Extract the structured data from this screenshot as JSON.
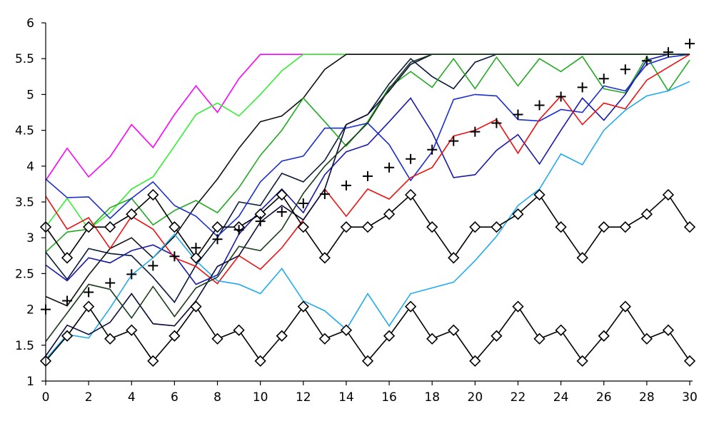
{
  "chart_data": {
    "type": "line",
    "title": "",
    "xlabel": "",
    "ylabel": "",
    "xlim": [
      0,
      30
    ],
    "ylim": [
      1,
      6
    ],
    "grid": false,
    "legend": "none",
    "x_ticks": [
      0,
      2,
      4,
      6,
      8,
      10,
      12,
      14,
      16,
      18,
      20,
      22,
      24,
      26,
      28,
      30
    ],
    "x_tick_labels": [
      "0",
      "2",
      "4",
      "6",
      "8",
      "10",
      "12",
      "14",
      "16",
      "18",
      "20",
      "22",
      "24",
      "26",
      "28",
      "30"
    ],
    "y_ticks": [
      1,
      1.5,
      2,
      2.5,
      3,
      3.5,
      4,
      4.5,
      5,
      5.5,
      6
    ],
    "y_tick_labels": [
      "1",
      "1.5",
      "2",
      "2.5",
      "3",
      "3.5",
      "4",
      "4.5",
      "5",
      "5.5",
      "6"
    ],
    "x": [
      0,
      1,
      2,
      3,
      4,
      5,
      6,
      7,
      8,
      9,
      10,
      11,
      12,
      13,
      14,
      15,
      16,
      17,
      18,
      19,
      20,
      21,
      22,
      23,
      24,
      25,
      26,
      27,
      28,
      29,
      30
    ],
    "series": [
      {
        "color": "#ff00ff",
        "marker": "none",
        "values": [
          3.8,
          4.25,
          3.85,
          4.13,
          4.58,
          4.26,
          4.72,
          5.12,
          4.75,
          5.22,
          5.56,
          5.56,
          5.56,
          5.56,
          5.56,
          5.56,
          5.56,
          5.56,
          5.56,
          5.56,
          5.56,
          5.56,
          5.56,
          5.56,
          5.56,
          5.56,
          5.56,
          5.56,
          5.56,
          5.56,
          5.56
        ]
      },
      {
        "color": "#33ee33",
        "marker": "none",
        "values": [
          3.15,
          3.55,
          3.12,
          3.35,
          3.68,
          3.85,
          4.28,
          4.72,
          4.88,
          4.7,
          5.0,
          5.33,
          5.56,
          5.56,
          5.56,
          5.56,
          5.56,
          5.56,
          5.56,
          5.56,
          5.56,
          5.56,
          5.56,
          5.56,
          5.56,
          5.56,
          5.56,
          5.56,
          5.56,
          5.56,
          5.56
        ]
      },
      {
        "color": "#0a1a3a",
        "marker": "none",
        "values": [
          2.8,
          2.42,
          2.85,
          2.78,
          2.75,
          2.45,
          2.1,
          2.62,
          3.0,
          3.5,
          3.45,
          3.9,
          3.78,
          4.08,
          4.58,
          4.72,
          5.15,
          5.5,
          5.25,
          5.08,
          5.45,
          5.56,
          5.56,
          5.56,
          5.56,
          5.56,
          5.56,
          5.56,
          5.56,
          5.56,
          5.56
        ]
      },
      {
        "color": "#111111",
        "marker": "none",
        "values": [
          2.18,
          2.05,
          2.48,
          2.85,
          3.0,
          2.72,
          3.02,
          3.45,
          3.82,
          4.25,
          4.62,
          4.7,
          4.95,
          5.35,
          5.56,
          5.56,
          5.56,
          5.56,
          5.56,
          5.56,
          5.56,
          5.56,
          5.56,
          5.56,
          5.56,
          5.56,
          5.56,
          5.56,
          5.56,
          5.56,
          5.56
        ]
      },
      {
        "color": "#22aa22",
        "marker": "none",
        "values": [
          2.8,
          3.08,
          3.12,
          3.42,
          3.55,
          3.18,
          3.38,
          3.52,
          3.35,
          3.7,
          4.15,
          4.5,
          4.95,
          4.62,
          4.28,
          4.62,
          5.1,
          5.32,
          5.1,
          5.5,
          5.08,
          5.52,
          5.12,
          5.5,
          5.32,
          5.53,
          5.08,
          5.02,
          5.53,
          5.05,
          5.48
        ]
      },
      {
        "color": "#1c2fcf",
        "marker": "none",
        "values": [
          3.82,
          3.56,
          3.57,
          3.27,
          3.55,
          3.78,
          3.45,
          3.3,
          3.02,
          3.3,
          3.78,
          4.07,
          4.14,
          4.53,
          4.53,
          4.6,
          4.3,
          3.8,
          4.2,
          4.93,
          5.0,
          4.98,
          4.65,
          4.63,
          4.79,
          4.75,
          5.12,
          5.05,
          5.42,
          5.52,
          5.56
        ]
      },
      {
        "color": "#1a1aaa",
        "marker": "none",
        "values": [
          2.62,
          2.4,
          2.72,
          2.65,
          2.82,
          2.9,
          2.75,
          2.35,
          2.48,
          3.05,
          3.38,
          3.68,
          3.35,
          3.88,
          4.2,
          4.3,
          4.62,
          4.95,
          4.47,
          3.84,
          3.88,
          4.22,
          4.44,
          4.03,
          4.5,
          4.95,
          4.64,
          5.0,
          5.48,
          5.56,
          5.56
        ]
      },
      {
        "color": "#ee1111",
        "marker": "none",
        "values": [
          3.58,
          3.12,
          3.28,
          2.85,
          3.3,
          3.12,
          2.72,
          2.6,
          2.36,
          2.75,
          2.56,
          2.86,
          3.25,
          3.68,
          3.3,
          3.68,
          3.54,
          3.84,
          3.98,
          4.42,
          4.5,
          4.65,
          4.18,
          4.65,
          4.98,
          4.58,
          4.88,
          4.8,
          5.2,
          5.38,
          5.56
        ]
      },
      {
        "color": "#22aaee",
        "marker": "none",
        "values": [
          1.3,
          1.65,
          1.6,
          2.02,
          2.48,
          2.72,
          3.05,
          2.68,
          2.4,
          2.35,
          2.22,
          2.57,
          2.12,
          1.98,
          1.72,
          2.22,
          1.77,
          2.22,
          2.3,
          2.38,
          2.68,
          3.02,
          3.45,
          3.68,
          4.17,
          4.02,
          4.5,
          4.78,
          4.98,
          5.05,
          5.18
        ]
      },
      {
        "color": "#0a0a3a",
        "marker": "none",
        "values": [
          1.35,
          1.78,
          1.65,
          1.82,
          2.22,
          1.8,
          1.77,
          2.12,
          2.6,
          2.75,
          3.22,
          3.45,
          3.25,
          3.68,
          4.58,
          4.72,
          5.05,
          5.42,
          5.56,
          5.56,
          5.56,
          5.56,
          5.56,
          5.56,
          5.56,
          5.56,
          5.56,
          5.56,
          5.56,
          5.56,
          5.56
        ]
      },
      {
        "color": "#1a3a1a",
        "marker": "none",
        "values": [
          1.55,
          1.95,
          2.35,
          2.28,
          1.88,
          2.32,
          1.9,
          2.3,
          2.45,
          2.88,
          2.82,
          3.12,
          3.62,
          4.0,
          4.3,
          4.6,
          5.08,
          5.45,
          5.56,
          5.56,
          5.56,
          5.56,
          5.56,
          5.56,
          5.56,
          5.56,
          5.56,
          5.56,
          5.56,
          5.56,
          5.56
        ]
      },
      {
        "color": "#000000",
        "marker": "diamond",
        "values": [
          3.15,
          2.72,
          3.15,
          3.15,
          3.33,
          3.6,
          3.15,
          2.72,
          3.15,
          3.15,
          3.33,
          3.6,
          3.15,
          2.72,
          3.15,
          3.15,
          3.33,
          3.6,
          3.15,
          2.72,
          3.15,
          3.15,
          3.33,
          3.6,
          3.15,
          2.72,
          3.15,
          3.15,
          3.33,
          3.6,
          3.15
        ]
      },
      {
        "color": "#000000",
        "marker": "diamond",
        "values": [
          1.28,
          1.63,
          2.04,
          1.59,
          1.71,
          1.28,
          1.63,
          2.04,
          1.59,
          1.71,
          1.28,
          1.63,
          2.04,
          1.59,
          1.71,
          1.28,
          1.63,
          2.04,
          1.59,
          1.71,
          1.28,
          1.63,
          2.04,
          1.59,
          1.71,
          1.28,
          1.63,
          2.04,
          1.59,
          1.71,
          1.28
        ]
      },
      {
        "color": "#000000",
        "marker": "plus",
        "line": false,
        "values": [
          2.0,
          2.12,
          2.24,
          2.37,
          2.49,
          2.61,
          2.74,
          2.86,
          2.98,
          3.11,
          3.23,
          3.36,
          3.48,
          3.61,
          3.73,
          3.86,
          3.98,
          4.1,
          4.23,
          4.35,
          4.48,
          4.6,
          4.72,
          4.85,
          4.97,
          5.1,
          5.22,
          5.35,
          5.47,
          5.59,
          5.71
        ]
      }
    ]
  }
}
